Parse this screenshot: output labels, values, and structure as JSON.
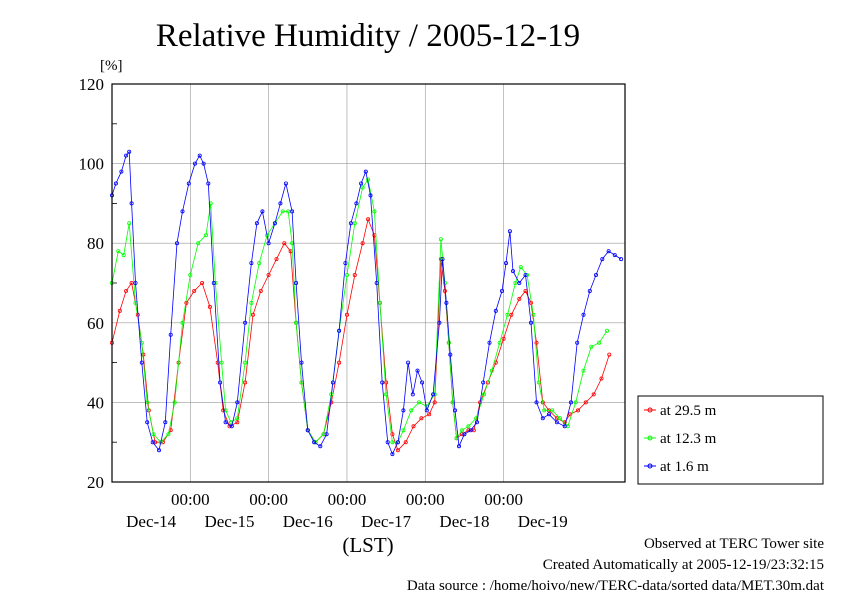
{
  "chart_data": {
    "type": "line",
    "title": "Relative Humidity / 2005-12-19",
    "ylabel": "[%]",
    "xlabel": "(LST)",
    "ylim": [
      20,
      120
    ],
    "yticks": [
      20,
      40,
      60,
      80,
      100,
      120
    ],
    "xlim": [
      0,
      6.55
    ],
    "x_unit": "days from 2005-12-13 12:00",
    "time_ticks": [
      {
        "x": 1,
        "label": "00:00"
      },
      {
        "x": 2,
        "label": "00:00"
      },
      {
        "x": 3,
        "label": "00:00"
      },
      {
        "x": 4,
        "label": "00:00"
      },
      {
        "x": 5,
        "label": "00:00"
      }
    ],
    "date_labels": [
      {
        "x": 0.5,
        "label": "Dec-14"
      },
      {
        "x": 1.5,
        "label": "Dec-15"
      },
      {
        "x": 2.5,
        "label": "Dec-16"
      },
      {
        "x": 3.5,
        "label": "Dec-17"
      },
      {
        "x": 4.5,
        "label": "Dec-18"
      },
      {
        "x": 5.5,
        "label": "Dec-19"
      }
    ],
    "grid": true,
    "legend_position": "right",
    "series": [
      {
        "name": "at 29.5 m",
        "color": "#ff0000",
        "points": [
          [
            0,
            55
          ],
          [
            0.1,
            63
          ],
          [
            0.18,
            68
          ],
          [
            0.25,
            70
          ],
          [
            0.33,
            62
          ],
          [
            0.4,
            52
          ],
          [
            0.47,
            38
          ],
          [
            0.55,
            30
          ],
          [
            0.65,
            30
          ],
          [
            0.75,
            33
          ],
          [
            0.85,
            50
          ],
          [
            0.95,
            65
          ],
          [
            1.05,
            68
          ],
          [
            1.15,
            70
          ],
          [
            1.25,
            64
          ],
          [
            1.35,
            50
          ],
          [
            1.42,
            38
          ],
          [
            1.5,
            34
          ],
          [
            1.6,
            35
          ],
          [
            1.7,
            45
          ],
          [
            1.8,
            62
          ],
          [
            1.9,
            68
          ],
          [
            2.0,
            72
          ],
          [
            2.1,
            76
          ],
          [
            2.2,
            80
          ],
          [
            2.28,
            78
          ],
          [
            2.35,
            60
          ],
          [
            2.42,
            45
          ],
          [
            2.5,
            33
          ],
          [
            2.6,
            30
          ],
          [
            2.7,
            32
          ],
          [
            2.8,
            40
          ],
          [
            2.9,
            50
          ],
          [
            3.0,
            62
          ],
          [
            3.1,
            72
          ],
          [
            3.2,
            80
          ],
          [
            3.27,
            86
          ],
          [
            3.35,
            82
          ],
          [
            3.42,
            65
          ],
          [
            3.5,
            45
          ],
          [
            3.58,
            32
          ],
          [
            3.65,
            28
          ],
          [
            3.75,
            30
          ],
          [
            3.85,
            34
          ],
          [
            3.95,
            36
          ],
          [
            4.05,
            37
          ],
          [
            4.12,
            40
          ],
          [
            4.2,
            76
          ],
          [
            4.25,
            68
          ],
          [
            4.3,
            55
          ],
          [
            4.35,
            40
          ],
          [
            4.4,
            31
          ],
          [
            4.47,
            32
          ],
          [
            4.55,
            33
          ],
          [
            4.62,
            33
          ],
          [
            4.7,
            40
          ],
          [
            4.8,
            45
          ],
          [
            4.9,
            50
          ],
          [
            5.0,
            56
          ],
          [
            5.1,
            62
          ],
          [
            5.2,
            66
          ],
          [
            5.28,
            68
          ],
          [
            5.35,
            65
          ],
          [
            5.42,
            55
          ],
          [
            5.5,
            40
          ],
          [
            5.58,
            38
          ],
          [
            5.68,
            36
          ],
          [
            5.78,
            35
          ],
          [
            5.85,
            37
          ],
          [
            5.95,
            38
          ],
          [
            6.05,
            40
          ],
          [
            6.15,
            42
          ],
          [
            6.25,
            46
          ],
          [
            6.35,
            52
          ]
        ]
      },
      {
        "name": "at 12.3 m",
        "color": "#00ff00",
        "points": [
          [
            0,
            70
          ],
          [
            0.08,
            78
          ],
          [
            0.15,
            77
          ],
          [
            0.22,
            85
          ],
          [
            0.3,
            65
          ],
          [
            0.38,
            55
          ],
          [
            0.45,
            40
          ],
          [
            0.53,
            32
          ],
          [
            0.62,
            30
          ],
          [
            0.72,
            32
          ],
          [
            0.8,
            40
          ],
          [
            0.9,
            60
          ],
          [
            1.0,
            72
          ],
          [
            1.1,
            80
          ],
          [
            1.2,
            82
          ],
          [
            1.26,
            90
          ],
          [
            1.32,
            70
          ],
          [
            1.4,
            50
          ],
          [
            1.45,
            38
          ],
          [
            1.52,
            35
          ],
          [
            1.6,
            36
          ],
          [
            1.7,
            50
          ],
          [
            1.78,
            65
          ],
          [
            1.88,
            75
          ],
          [
            1.98,
            82
          ],
          [
            2.08,
            85
          ],
          [
            2.18,
            88
          ],
          [
            2.25,
            88
          ],
          [
            2.3,
            80
          ],
          [
            2.35,
            60
          ],
          [
            2.42,
            45
          ],
          [
            2.5,
            33
          ],
          [
            2.6,
            30
          ],
          [
            2.7,
            32
          ],
          [
            2.8,
            42
          ],
          [
            2.9,
            58
          ],
          [
            3.0,
            72
          ],
          [
            3.1,
            85
          ],
          [
            3.2,
            94
          ],
          [
            3.27,
            96
          ],
          [
            3.35,
            88
          ],
          [
            3.42,
            65
          ],
          [
            3.5,
            42
          ],
          [
            3.58,
            30
          ],
          [
            3.65,
            30
          ],
          [
            3.72,
            33
          ],
          [
            3.82,
            38
          ],
          [
            3.92,
            40
          ],
          [
            4.02,
            39
          ],
          [
            4.12,
            42
          ],
          [
            4.2,
            81
          ],
          [
            4.25,
            70
          ],
          [
            4.3,
            55
          ],
          [
            4.35,
            40
          ],
          [
            4.4,
            31
          ],
          [
            4.47,
            33
          ],
          [
            4.55,
            34
          ],
          [
            4.65,
            36
          ],
          [
            4.75,
            42
          ],
          [
            4.85,
            48
          ],
          [
            4.95,
            55
          ],
          [
            5.05,
            62
          ],
          [
            5.15,
            70
          ],
          [
            5.22,
            74
          ],
          [
            5.3,
            72
          ],
          [
            5.38,
            62
          ],
          [
            5.45,
            45
          ],
          [
            5.52,
            38
          ],
          [
            5.62,
            38
          ],
          [
            5.72,
            36
          ],
          [
            5.82,
            34
          ],
          [
            5.92,
            40
          ],
          [
            6.02,
            48
          ],
          [
            6.12,
            54
          ],
          [
            6.22,
            55
          ],
          [
            6.32,
            58
          ]
        ]
      },
      {
        "name": "at 1.6 m",
        "color": "#0000ff",
        "points": [
          [
            0,
            92
          ],
          [
            0.05,
            95
          ],
          [
            0.12,
            98
          ],
          [
            0.18,
            102
          ],
          [
            0.22,
            103
          ],
          [
            0.25,
            90
          ],
          [
            0.3,
            70
          ],
          [
            0.38,
            50
          ],
          [
            0.45,
            35
          ],
          [
            0.52,
            30
          ],
          [
            0.6,
            28
          ],
          [
            0.68,
            35
          ],
          [
            0.75,
            57
          ],
          [
            0.83,
            80
          ],
          [
            0.9,
            88
          ],
          [
            0.98,
            95
          ],
          [
            1.06,
            100
          ],
          [
            1.12,
            102
          ],
          [
            1.17,
            100
          ],
          [
            1.23,
            95
          ],
          [
            1.3,
            70
          ],
          [
            1.38,
            45
          ],
          [
            1.45,
            35
          ],
          [
            1.53,
            34
          ],
          [
            1.6,
            40
          ],
          [
            1.7,
            60
          ],
          [
            1.78,
            75
          ],
          [
            1.85,
            85
          ],
          [
            1.92,
            88
          ],
          [
            2.0,
            80
          ],
          [
            2.08,
            85
          ],
          [
            2.15,
            90
          ],
          [
            2.22,
            95
          ],
          [
            2.3,
            88
          ],
          [
            2.35,
            70
          ],
          [
            2.42,
            50
          ],
          [
            2.5,
            33
          ],
          [
            2.58,
            30
          ],
          [
            2.66,
            29
          ],
          [
            2.74,
            32
          ],
          [
            2.82,
            45
          ],
          [
            2.9,
            58
          ],
          [
            2.98,
            75
          ],
          [
            3.05,
            85
          ],
          [
            3.12,
            90
          ],
          [
            3.18,
            95
          ],
          [
            3.24,
            98
          ],
          [
            3.3,
            92
          ],
          [
            3.38,
            70
          ],
          [
            3.45,
            45
          ],
          [
            3.52,
            30
          ],
          [
            3.58,
            27
          ],
          [
            3.65,
            30
          ],
          [
            3.72,
            38
          ],
          [
            3.78,
            50
          ],
          [
            3.84,
            42
          ],
          [
            3.9,
            48
          ],
          [
            3.96,
            45
          ],
          [
            4.02,
            38
          ],
          [
            4.1,
            42
          ],
          [
            4.18,
            60
          ],
          [
            4.22,
            76
          ],
          [
            4.27,
            65
          ],
          [
            4.32,
            52
          ],
          [
            4.38,
            38
          ],
          [
            4.43,
            29
          ],
          [
            4.5,
            32
          ],
          [
            4.58,
            33
          ],
          [
            4.66,
            35
          ],
          [
            4.74,
            45
          ],
          [
            4.82,
            55
          ],
          [
            4.9,
            63
          ],
          [
            4.98,
            68
          ],
          [
            5.03,
            75
          ],
          [
            5.08,
            83
          ],
          [
            5.12,
            73
          ],
          [
            5.2,
            70
          ],
          [
            5.28,
            72
          ],
          [
            5.35,
            60
          ],
          [
            5.42,
            40
          ],
          [
            5.5,
            36
          ],
          [
            5.58,
            37
          ],
          [
            5.68,
            35
          ],
          [
            5.78,
            34
          ],
          [
            5.86,
            40
          ],
          [
            5.94,
            55
          ],
          [
            6.02,
            62
          ],
          [
            6.1,
            68
          ],
          [
            6.18,
            72
          ],
          [
            6.26,
            76
          ],
          [
            6.34,
            78
          ],
          [
            6.42,
            77
          ],
          [
            6.5,
            76
          ]
        ]
      }
    ]
  },
  "footer": {
    "line1": "Observed at TERC Tower site",
    "line2": "Created Automatically at 2005-12-19/23:32:15",
    "line3": "Data source : /home/hoivo/new/TERC-data/sorted  data/MET.30m.dat"
  }
}
